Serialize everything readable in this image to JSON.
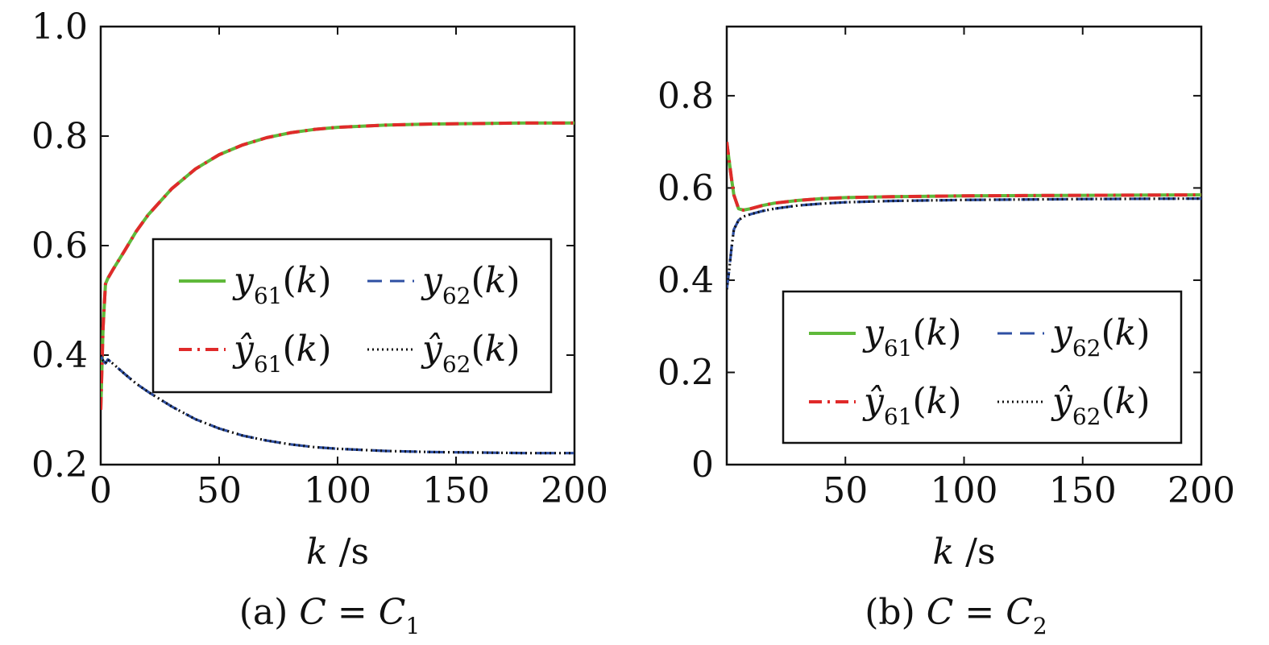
{
  "chart_data": [
    {
      "id": "a",
      "type": "line",
      "xlabel": "k /s",
      "caption": "(a)  C =  C₁",
      "caption_parts": {
        "tag": "(a)",
        "var": "C",
        "eq": "=",
        "sub_base": "C",
        "sub": "1"
      },
      "xlim": [
        0,
        200
      ],
      "ylim": [
        0.2,
        1.0
      ],
      "xticks": [
        "0",
        "50",
        "100",
        "150",
        "200"
      ],
      "xtick_values": [
        0,
        50,
        100,
        150,
        200
      ],
      "yticks": [
        "0.2",
        "0.4",
        "0.6",
        "0.8",
        "1.0"
      ],
      "ytick_values": [
        0.2,
        0.4,
        0.6,
        0.8,
        1.0
      ],
      "legend_position": "center-right",
      "series": [
        {
          "name": "y61(k)",
          "color": "#5fb93a",
          "style": "solid",
          "x": [
            0,
            1,
            2,
            3,
            5,
            10,
            15,
            20,
            30,
            40,
            50,
            60,
            70,
            80,
            90,
            100,
            120,
            140,
            160,
            180,
            200
          ],
          "y": [
            0.3,
            0.45,
            0.53,
            0.54,
            0.555,
            0.59,
            0.626,
            0.656,
            0.704,
            0.74,
            0.766,
            0.784,
            0.797,
            0.806,
            0.812,
            0.816,
            0.82,
            0.822,
            0.823,
            0.824,
            0.824
          ]
        },
        {
          "name": "ŷ61(k)",
          "color": "#e02a2a",
          "style": "dashdot",
          "x": [
            0,
            1,
            2,
            3,
            5,
            10,
            15,
            20,
            30,
            40,
            50,
            60,
            70,
            80,
            90,
            100,
            120,
            140,
            160,
            180,
            200
          ],
          "y": [
            0.3,
            0.45,
            0.53,
            0.54,
            0.555,
            0.59,
            0.626,
            0.656,
            0.704,
            0.74,
            0.766,
            0.784,
            0.797,
            0.806,
            0.812,
            0.816,
            0.82,
            0.822,
            0.823,
            0.824,
            0.824
          ]
        },
        {
          "name": "y62(k)",
          "color": "#2e4fa3",
          "style": "dashed",
          "x": [
            0,
            1,
            2,
            3,
            5,
            10,
            15,
            20,
            30,
            40,
            50,
            60,
            70,
            80,
            90,
            100,
            120,
            140,
            160,
            180,
            200
          ],
          "y": [
            0.4,
            0.39,
            0.385,
            0.392,
            0.385,
            0.366,
            0.348,
            0.333,
            0.306,
            0.283,
            0.266,
            0.253,
            0.244,
            0.237,
            0.232,
            0.229,
            0.225,
            0.223,
            0.222,
            0.221,
            0.221
          ]
        },
        {
          "name": "ŷ62(k)",
          "color": "#111111",
          "style": "dotted",
          "x": [
            0,
            1,
            2,
            3,
            5,
            10,
            15,
            20,
            30,
            40,
            50,
            60,
            70,
            80,
            90,
            100,
            120,
            140,
            160,
            180,
            200
          ],
          "y": [
            0.4,
            0.39,
            0.385,
            0.392,
            0.385,
            0.366,
            0.348,
            0.333,
            0.306,
            0.283,
            0.266,
            0.253,
            0.244,
            0.237,
            0.232,
            0.229,
            0.225,
            0.223,
            0.222,
            0.221,
            0.221
          ]
        }
      ]
    },
    {
      "id": "b",
      "type": "line",
      "xlabel": "k /s",
      "caption": "(b)  C =  C₂",
      "caption_parts": {
        "tag": "(b)",
        "var": "C",
        "eq": "=",
        "sub_base": "C",
        "sub": "2"
      },
      "xlim": [
        0,
        200
      ],
      "ylim": [
        0,
        0.95
      ],
      "xticks": [
        "50",
        "100",
        "150",
        "200"
      ],
      "xtick_values": [
        50,
        100,
        150,
        200
      ],
      "yticks": [
        "0",
        "0.2",
        "0.4",
        "0.6",
        "0.8"
      ],
      "ytick_values": [
        0,
        0.2,
        0.4,
        0.6,
        0.8
      ],
      "legend_position": "lower-right",
      "series": [
        {
          "name": "y61(k)",
          "color": "#5fb93a",
          "style": "solid",
          "x": [
            0,
            1,
            2,
            3,
            5,
            7,
            10,
            15,
            20,
            30,
            40,
            50,
            70,
            100,
            150,
            200
          ],
          "y": [
            0.7,
            0.66,
            0.62,
            0.585,
            0.555,
            0.552,
            0.555,
            0.562,
            0.567,
            0.573,
            0.577,
            0.579,
            0.581,
            0.583,
            0.584,
            0.585
          ]
        },
        {
          "name": "ŷ61(k)",
          "color": "#e02a2a",
          "style": "dashdot",
          "x": [
            0,
            1,
            2,
            3,
            5,
            7,
            10,
            15,
            20,
            30,
            40,
            50,
            70,
            100,
            150,
            200
          ],
          "y": [
            0.7,
            0.66,
            0.62,
            0.585,
            0.555,
            0.552,
            0.555,
            0.562,
            0.567,
            0.573,
            0.577,
            0.579,
            0.581,
            0.583,
            0.584,
            0.585
          ]
        },
        {
          "name": "y62(k)",
          "color": "#2e4fa3",
          "style": "dashed",
          "x": [
            0,
            1,
            2,
            3,
            5,
            7,
            10,
            15,
            20,
            30,
            40,
            50,
            70,
            100,
            150,
            200
          ],
          "y": [
            0.38,
            0.42,
            0.47,
            0.51,
            0.53,
            0.538,
            0.543,
            0.55,
            0.555,
            0.562,
            0.566,
            0.569,
            0.572,
            0.574,
            0.576,
            0.577
          ]
        },
        {
          "name": "ŷ62(k)",
          "color": "#111111",
          "style": "dotted",
          "x": [
            0,
            1,
            2,
            3,
            5,
            7,
            10,
            15,
            20,
            30,
            40,
            50,
            70,
            100,
            150,
            200
          ],
          "y": [
            0.38,
            0.42,
            0.47,
            0.51,
            0.53,
            0.538,
            0.543,
            0.55,
            0.555,
            0.562,
            0.566,
            0.569,
            0.572,
            0.574,
            0.576,
            0.577
          ]
        }
      ]
    }
  ]
}
